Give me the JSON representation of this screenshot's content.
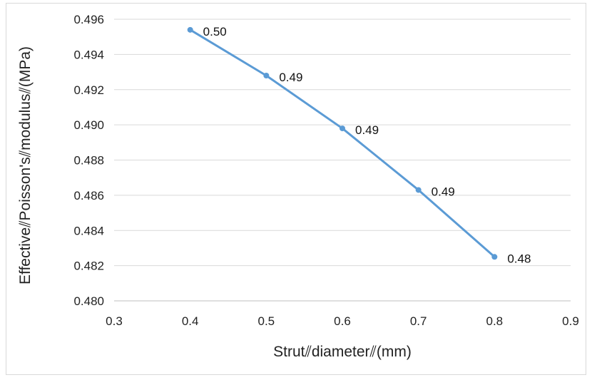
{
  "chart_data": {
    "type": "line",
    "title": "",
    "xlabel": "Strut⫽diameter⫽(mm)",
    "ylabel": "Effective⫽Poisson's⫽modulus⫽(MPa)",
    "xlim": [
      0.3,
      0.9
    ],
    "ylim": [
      0.48,
      0.496
    ],
    "x_ticks": [
      "0.3",
      "0.4",
      "0.5",
      "0.6",
      "0.7",
      "0.8",
      "0.9"
    ],
    "y_ticks": [
      "0.480",
      "0.482",
      "0.484",
      "0.486",
      "0.488",
      "0.490",
      "0.492",
      "0.494",
      "0.496"
    ],
    "grid": "horizontal",
    "legend": "none",
    "series": [
      {
        "x": [
          0.4,
          0.5,
          0.6,
          0.7,
          0.8
        ],
        "y": [
          0.4954,
          0.4928,
          0.4898,
          0.4863,
          0.4825
        ],
        "data_labels": [
          "0.50",
          "0.49",
          "0.49",
          "0.49",
          "0.48"
        ],
        "color": "#5b9bd5"
      }
    ],
    "colors": {
      "grid": "#d9d9d9",
      "axis": "#bfbfbf",
      "line": "#5b9bd5"
    }
  }
}
